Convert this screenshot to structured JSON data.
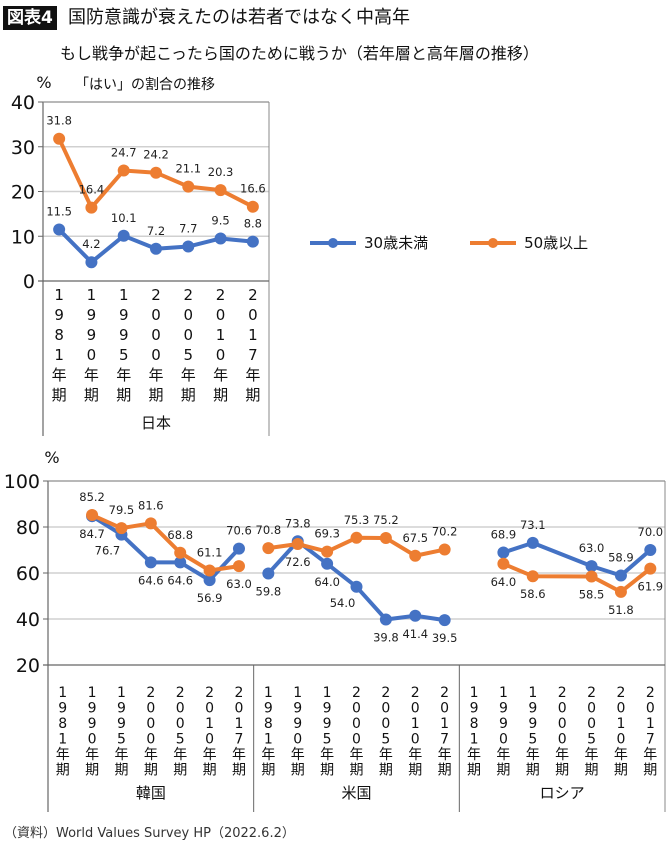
{
  "header": {
    "badge": "図表4",
    "title": "国防意識が衰えたのは若者ではなく中高年",
    "subtitle": "もし戦争が起こったら国のために戦うか（若年層と高年層の推移）",
    "note": "「はい」の割合の推移"
  },
  "legend": [
    {
      "name": "30歳未満",
      "color": "#4472C4"
    },
    {
      "name": "50歳以上",
      "color": "#ED7D31"
    }
  ],
  "source": "（資料）World Values Survey HP（2022.6.2）",
  "chart_data": [
    {
      "type": "line",
      "ylabel": "%",
      "ylim": [
        0,
        40
      ],
      "yticks": [
        0,
        10,
        20,
        30,
        40
      ],
      "grid": true,
      "groups": [
        "日本"
      ],
      "categories": [
        "1981年期",
        "1990年期",
        "1995年期",
        "2000年期",
        "2005年期",
        "2010年期",
        "2017年期"
      ],
      "series": [
        {
          "name": "30歳未満",
          "color": "#4472C4",
          "values": [
            [
              11.5,
              4.2,
              10.1,
              7.2,
              7.7,
              9.5,
              8.8
            ]
          ]
        },
        {
          "name": "50歳以上",
          "color": "#ED7D31",
          "values": [
            [
              31.8,
              16.4,
              24.7,
              24.2,
              21.1,
              20.3,
              16.6
            ]
          ]
        }
      ]
    },
    {
      "type": "line",
      "ylabel": "%",
      "ylim": [
        20,
        100
      ],
      "yticks": [
        20,
        40,
        60,
        80,
        100
      ],
      "grid": true,
      "groups": [
        "韓国",
        "米国",
        "ロシア"
      ],
      "categories": [
        "1981年期",
        "1990年期",
        "1995年期",
        "2000年期",
        "2005年期",
        "2010年期",
        "2017年期"
      ],
      "series": [
        {
          "name": "30歳未満",
          "color": "#4472C4",
          "values": [
            [
              null,
              84.7,
              76.7,
              64.6,
              64.6,
              56.9,
              70.6
            ],
            [
              59.8,
              73.8,
              64.0,
              54.0,
              39.8,
              41.4,
              39.5
            ],
            [
              null,
              68.9,
              73.1,
              null,
              63.0,
              58.9,
              70.0
            ]
          ]
        },
        {
          "name": "50歳以上",
          "color": "#ED7D31",
          "values": [
            [
              null,
              85.2,
              79.5,
              81.6,
              68.8,
              61.1,
              63.0
            ],
            [
              70.8,
              72.6,
              69.3,
              75.3,
              75.2,
              67.5,
              70.2
            ],
            [
              null,
              64.0,
              58.6,
              null,
              58.5,
              51.8,
              61.9
            ]
          ]
        }
      ]
    }
  ]
}
